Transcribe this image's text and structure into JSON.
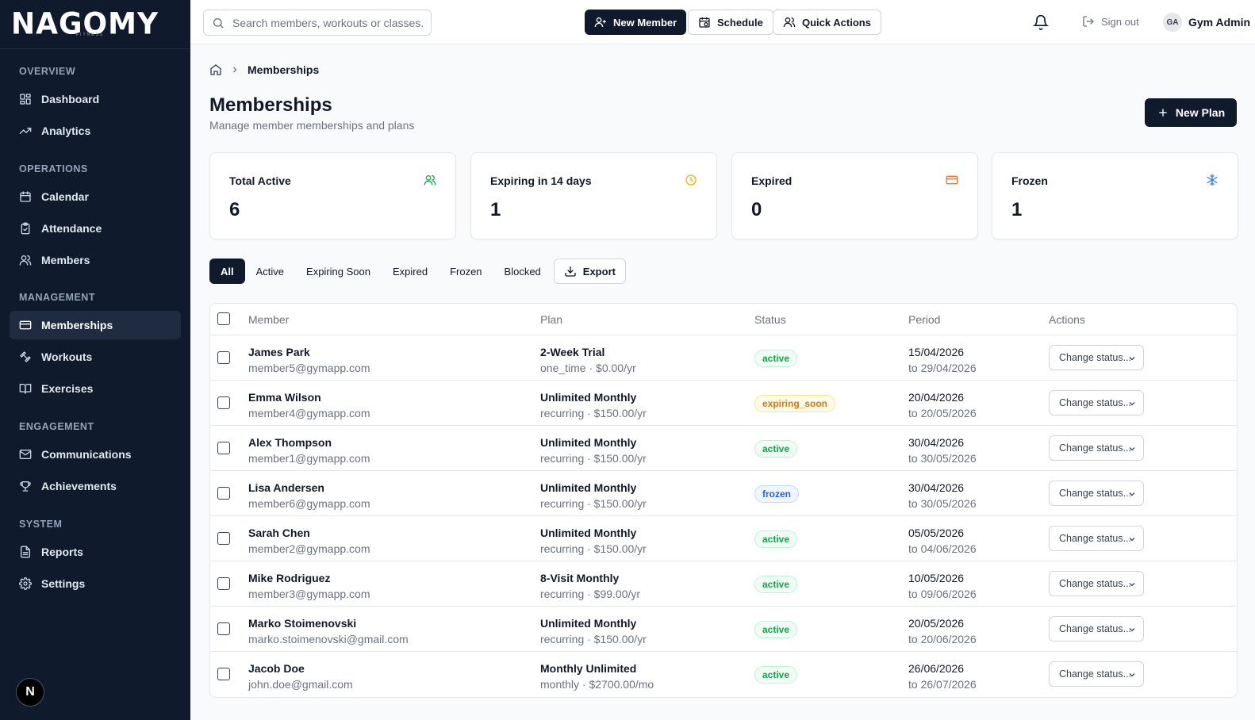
{
  "brand": {
    "logo": "NAGOMY",
    "logo_sub": "FITNESS"
  },
  "sidebar": {
    "sections": [
      {
        "title": "OVERVIEW",
        "items": [
          {
            "label": "Dashboard",
            "icon": "grid-icon"
          },
          {
            "label": "Analytics",
            "icon": "trending-up-icon"
          }
        ]
      },
      {
        "title": "OPERATIONS",
        "items": [
          {
            "label": "Calendar",
            "icon": "calendar-icon"
          },
          {
            "label": "Attendance",
            "icon": "clipboard-check-icon"
          },
          {
            "label": "Members",
            "icon": "users-icon"
          }
        ]
      },
      {
        "title": "MANAGEMENT",
        "items": [
          {
            "label": "Memberships",
            "icon": "credit-card-icon"
          },
          {
            "label": "Workouts",
            "icon": "dumbbell-icon"
          },
          {
            "label": "Exercises",
            "icon": "book-open-icon"
          }
        ]
      },
      {
        "title": "ENGAGEMENT",
        "items": [
          {
            "label": "Communications",
            "icon": "mail-icon"
          },
          {
            "label": "Achievements",
            "icon": "trophy-icon"
          }
        ]
      },
      {
        "title": "SYSTEM",
        "items": [
          {
            "label": "Reports",
            "icon": "file-text-icon"
          },
          {
            "label": "Settings",
            "icon": "gear-icon"
          }
        ]
      }
    ],
    "active": "Memberships",
    "bottom_avatar": "N"
  },
  "topbar": {
    "search_placeholder": "Search members, workouts or classes...",
    "new_member": "New Member",
    "schedule": "Schedule",
    "quick_actions": "Quick Actions",
    "sign_out": "Sign out",
    "user_initials": "GA",
    "user_name": "Gym Admin"
  },
  "page": {
    "breadcrumb": "Memberships",
    "title": "Memberships",
    "subtitle": "Manage member memberships and plans",
    "new_plan": "New Plan"
  },
  "stats": [
    {
      "label": "Total Active",
      "value": "6",
      "icon": "users-icon",
      "color": "#16a34a"
    },
    {
      "label": "Expiring in 14 days",
      "value": "1",
      "icon": "clock-icon",
      "color": "#eab308"
    },
    {
      "label": "Expired",
      "value": "0",
      "icon": "credit-card-icon",
      "color": "#f97316"
    },
    {
      "label": "Frozen",
      "value": "1",
      "icon": "snowflake-icon",
      "color": "#3b82f6"
    }
  ],
  "filters": {
    "items": [
      "All",
      "Active",
      "Expiring Soon",
      "Expired",
      "Frozen",
      "Blocked"
    ],
    "active": "All",
    "export": "Export"
  },
  "table": {
    "headers": {
      "member": "Member",
      "plan": "Plan",
      "status": "Status",
      "period": "Period",
      "actions": "Actions"
    },
    "action_placeholder": "Change status...",
    "rows": [
      {
        "name": "James Park",
        "email": "member5@gymapp.com",
        "plan": "2-Week Trial",
        "plan_detail": "one_time · $0.00/yr",
        "status": "active",
        "start": "15/04/2026",
        "end": "to 29/04/2026"
      },
      {
        "name": "Emma Wilson",
        "email": "member4@gymapp.com",
        "plan": "Unlimited Monthly",
        "plan_detail": "recurring · $150.00/yr",
        "status": "expiring_soon",
        "start": "20/04/2026",
        "end": "to 20/05/2026"
      },
      {
        "name": "Alex Thompson",
        "email": "member1@gymapp.com",
        "plan": "Unlimited Monthly",
        "plan_detail": "recurring · $150.00/yr",
        "status": "active",
        "start": "30/04/2026",
        "end": "to 30/05/2026"
      },
      {
        "name": "Lisa Andersen",
        "email": "member6@gymapp.com",
        "plan": "Unlimited Monthly",
        "plan_detail": "recurring · $150.00/yr",
        "status": "frozen",
        "start": "30/04/2026",
        "end": "to 30/05/2026"
      },
      {
        "name": "Sarah Chen",
        "email": "member2@gymapp.com",
        "plan": "Unlimited Monthly",
        "plan_detail": "recurring · $150.00/yr",
        "status": "active",
        "start": "05/05/2026",
        "end": "to 04/06/2026"
      },
      {
        "name": "Mike Rodriguez",
        "email": "member3@gymapp.com",
        "plan": "8-Visit Monthly",
        "plan_detail": "recurring · $99.00/yr",
        "status": "active",
        "start": "10/05/2026",
        "end": "to 09/06/2026"
      },
      {
        "name": "Marko Stoimenovski",
        "email": "marko.stoimenovski@gmail.com",
        "plan": "Unlimited Monthly",
        "plan_detail": "recurring · $150.00/yr",
        "status": "active",
        "start": "20/05/2026",
        "end": "to 20/06/2026"
      },
      {
        "name": "Jacob Doe",
        "email": "john.doe@gmail.com",
        "plan": "Monthly Unlimited",
        "plan_detail": "monthly · $2700.00/mo",
        "status": "active",
        "start": "26/06/2026",
        "end": "to 26/07/2026"
      }
    ]
  }
}
